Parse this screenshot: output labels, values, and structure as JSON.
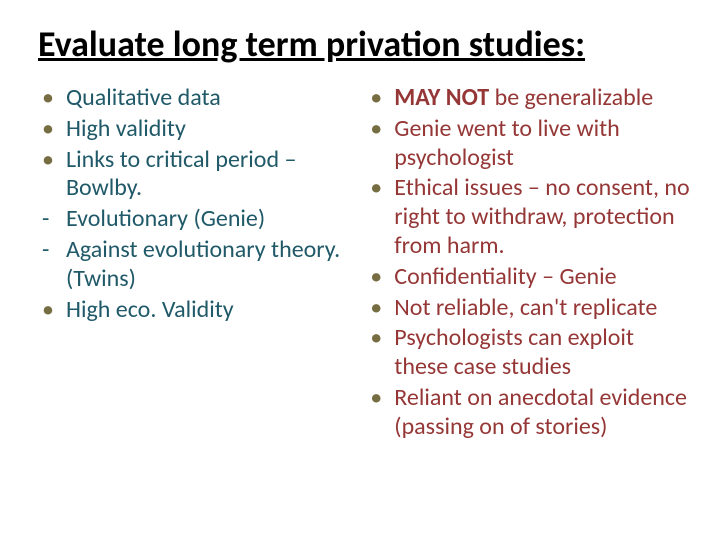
{
  "title": "Evaluate long term privation studies:",
  "colors": {
    "title": "#000000",
    "left_text": "#205968",
    "right_text": "#953736",
    "bullet_marker": "#766d42",
    "background": "#ffffff"
  },
  "typography": {
    "title_fontsize": 36,
    "body_fontsize": 24,
    "font_family": "Calibri"
  },
  "left_column": {
    "items": [
      {
        "marker": "bullet",
        "text": "Qualitative data"
      },
      {
        "marker": "bullet",
        "text": "High validity"
      },
      {
        "marker": "bullet",
        "text": "Links to critical period – Bowlby."
      },
      {
        "marker": "dash",
        "text": "Evolutionary (Genie)"
      },
      {
        "marker": "dash",
        "text": "Against evolutionary theory. (Twins)"
      },
      {
        "marker": "bullet",
        "text": "High eco. Validity"
      }
    ]
  },
  "right_column": {
    "items": [
      {
        "marker": "bullet",
        "bold_lead": "MAY NOT",
        "text": " be generalizable"
      },
      {
        "marker": "bullet",
        "text": "Genie went to live with psychologist"
      },
      {
        "marker": "bullet",
        "text": "Ethical issues – no consent, no right to withdraw, protection from harm."
      },
      {
        "marker": "bullet",
        "text": "Confidentiality – Genie"
      },
      {
        "marker": "bullet",
        "text": "Not reliable, can't replicate"
      },
      {
        "marker": "bullet",
        "text": "Psychologists can exploit these case studies"
      },
      {
        "marker": "bullet",
        "text": "Reliant on anecdotal evidence (passing on of stories)"
      }
    ]
  }
}
